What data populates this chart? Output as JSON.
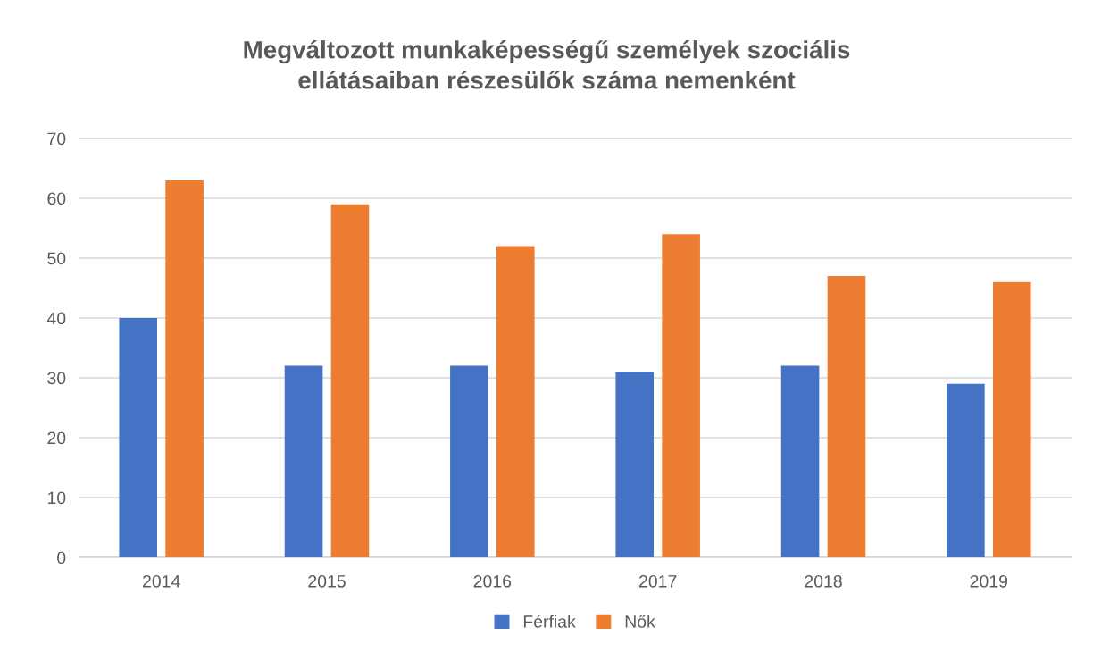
{
  "chart_data": {
    "type": "bar",
    "title": "Megváltozott munkaképességű személyek szociális\nellátásaiban részesülők száma nemenként",
    "categories": [
      "2014",
      "2015",
      "2016",
      "2017",
      "2018",
      "2019"
    ],
    "series": [
      {
        "name": "Férfiak",
        "color": "#4472c4",
        "values": [
          40,
          32,
          32,
          31,
          32,
          29
        ]
      },
      {
        "name": "Nők",
        "color": "#ed7d31",
        "values": [
          63,
          59,
          52,
          54,
          47,
          46
        ]
      }
    ],
    "ylim": [
      0,
      70
    ],
    "yticks": [
      0,
      10,
      20,
      30,
      40,
      50,
      60,
      70
    ],
    "grid": "y",
    "legend": "bottom"
  }
}
